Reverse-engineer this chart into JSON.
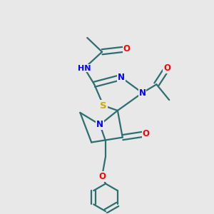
{
  "bg_color": "#e8e8e8",
  "atom_colors": {
    "N": "#0000ff",
    "O": "#ff0000",
    "S": "#ccaa00",
    "C": "#2d6e6e",
    "H": "#2d6e6e"
  },
  "line_color": "#2d6e6e",
  "line_width": 1.6,
  "font_size": 8.5
}
